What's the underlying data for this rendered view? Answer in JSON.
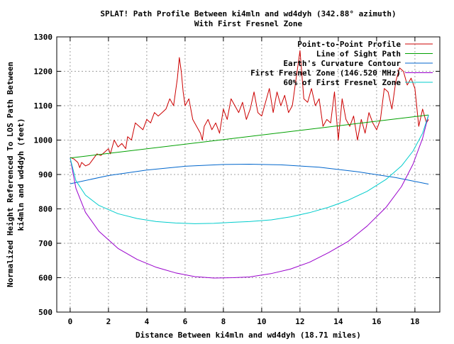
{
  "chart_data": {
    "type": "line",
    "title_lines": [
      "SPLAT! Path Profile Between ki4mln and wd4dyh (342.88° azimuth)",
      "With First Fresnel Zone"
    ],
    "xlabel": "Distance Between ki4mln and wd4dyh (18.71 miles)",
    "ylabel_lines": [
      "Normalized Height Referenced To LOS Path Between",
      "ki4mln and wd4dyh (feet)"
    ],
    "xlim": [
      -0.7,
      19.3
    ],
    "ylim": [
      500,
      1300
    ],
    "x_ticks": [
      0,
      2,
      4,
      6,
      8,
      10,
      12,
      14,
      16,
      18
    ],
    "x_tick_labels": [
      "0",
      "2",
      "4",
      "6",
      "8",
      "10",
      "12",
      "14",
      "16",
      "18"
    ],
    "y_ticks": [
      500,
      600,
      700,
      800,
      900,
      1000,
      1100,
      1200,
      1300
    ],
    "y_tick_labels": [
      "500",
      "600",
      "700",
      "800",
      "900",
      "1000",
      "1100",
      "1200",
      "1300"
    ],
    "grid": true,
    "legend_position": "top-right",
    "series": [
      {
        "name": "Point-to-Point Profile",
        "color": "#cc0000",
        "x": [
          0,
          0.2,
          0.4,
          0.5,
          0.6,
          0.8,
          1.0,
          1.2,
          1.4,
          1.6,
          1.8,
          2.0,
          2.1,
          2.3,
          2.5,
          2.7,
          2.9,
          3.0,
          3.2,
          3.4,
          3.6,
          3.8,
          4.0,
          4.2,
          4.4,
          4.6,
          4.8,
          5.0,
          5.2,
          5.4,
          5.6,
          5.7,
          5.8,
          5.9,
          6.0,
          6.2,
          6.4,
          6.6,
          6.8,
          6.9,
          7.0,
          7.2,
          7.4,
          7.6,
          7.8,
          8.0,
          8.2,
          8.4,
          8.6,
          8.8,
          9.0,
          9.2,
          9.4,
          9.6,
          9.8,
          10.0,
          10.2,
          10.4,
          10.6,
          10.8,
          11.0,
          11.2,
          11.4,
          11.6,
          11.8,
          12.0,
          12.2,
          12.4,
          12.6,
          12.8,
          13.0,
          13.2,
          13.4,
          13.6,
          13.8,
          14.0,
          14.2,
          14.4,
          14.6,
          14.8,
          15.0,
          15.2,
          15.4,
          15.6,
          15.8,
          16.0,
          16.2,
          16.4,
          16.6,
          16.8,
          17.0,
          17.2,
          17.4,
          17.6,
          17.8,
          18.0,
          18.2,
          18.4,
          18.6,
          18.71
        ],
        "values": [
          950,
          945,
          935,
          920,
          935,
          925,
          930,
          945,
          960,
          955,
          965,
          975,
          960,
          1000,
          980,
          990,
          975,
          1010,
          1000,
          1050,
          1040,
          1030,
          1060,
          1050,
          1080,
          1070,
          1080,
          1090,
          1120,
          1100,
          1180,
          1240,
          1200,
          1140,
          1100,
          1120,
          1060,
          1040,
          1020,
          1000,
          1040,
          1060,
          1030,
          1050,
          1020,
          1090,
          1060,
          1120,
          1100,
          1080,
          1110,
          1060,
          1090,
          1140,
          1080,
          1070,
          1110,
          1150,
          1080,
          1140,
          1100,
          1130,
          1080,
          1100,
          1180,
          1260,
          1120,
          1110,
          1150,
          1100,
          1120,
          1040,
          1060,
          1050,
          1140,
          1000,
          1120,
          1060,
          1040,
          1070,
          1000,
          1060,
          1020,
          1080,
          1050,
          1030,
          1060,
          1150,
          1140,
          1090,
          1170,
          1210,
          1200,
          1160,
          1180,
          1150,
          1040,
          1090,
          1050,
          1060
        ]
      },
      {
        "name": "Line of Sight Path",
        "color": "#00a000",
        "x": [
          0,
          18.71
        ],
        "values": [
          948,
          1073
        ]
      },
      {
        "name": "Earth's Curvature Contour",
        "color": "#0066cc",
        "x": [
          0,
          2,
          4,
          6,
          8,
          9.36,
          11,
          13,
          15,
          17,
          18.71
        ],
        "values": [
          873,
          897,
          913,
          924,
          929,
          930,
          928,
          921,
          908,
          891,
          872
        ]
      },
      {
        "name": "First Fresnel Zone (146.520 MHz)",
        "color": "#9900cc",
        "x": [
          0,
          0.3,
          0.8,
          1.5,
          2.5,
          3.5,
          4.5,
          5.5,
          6.5,
          7.5,
          8.5,
          9.36,
          10.5,
          11.5,
          12.5,
          13.5,
          14.5,
          15.5,
          16.5,
          17.3,
          17.9,
          18.4,
          18.71
        ],
        "values": [
          948,
          860,
          790,
          735,
          685,
          653,
          630,
          614,
          603,
          599,
          600,
          602,
          612,
          625,
          645,
          673,
          705,
          750,
          805,
          865,
          930,
          1005,
          1073
        ]
      },
      {
        "name": "60% of First Fresnel Zone",
        "color": "#00cccc",
        "x": [
          0,
          0.3,
          0.8,
          1.5,
          2.5,
          3.5,
          4.5,
          5.5,
          6.5,
          7.5,
          8.5,
          9.36,
          10.5,
          11.5,
          12.5,
          13.5,
          14.5,
          15.5,
          16.5,
          17.3,
          17.9,
          18.4,
          18.71
        ],
        "values": [
          948,
          882,
          840,
          810,
          786,
          772,
          763,
          759,
          757,
          758,
          761,
          763,
          768,
          777,
          789,
          805,
          825,
          851,
          886,
          925,
          968,
          1020,
          1073
        ]
      }
    ]
  }
}
